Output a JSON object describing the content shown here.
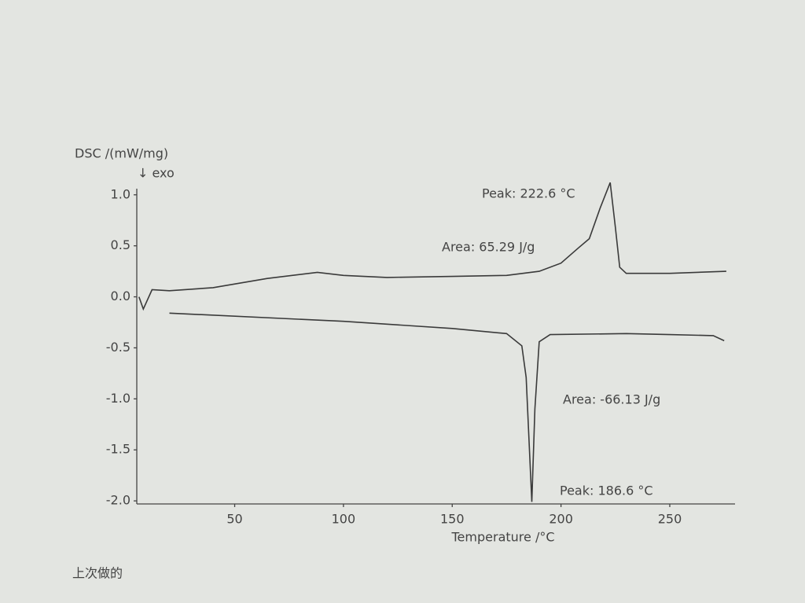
{
  "chart_data": {
    "type": "line",
    "ylabel": "DSC /(mW/mg)",
    "ylabel_note": "↓ exo",
    "xlabel": "Temperature /°C",
    "xlim": [
      5,
      280
    ],
    "ylim": [
      -2.03,
      1.06
    ],
    "xticks": [
      50,
      100,
      150,
      200,
      250
    ],
    "yticks": [
      {
        "value": 1,
        "label": "1.0"
      },
      0.5,
      {
        "value": 0,
        "label": "0.0"
      },
      -0.5,
      {
        "value": -1,
        "label": "-1.0"
      },
      -1.5,
      {
        "value": -2,
        "label": "-2.0"
      }
    ],
    "series": [
      {
        "color": "#3a3a3a",
        "x": [
          6,
          8,
          12,
          20,
          40,
          65,
          88,
          100,
          120,
          150,
          175,
          190,
          200,
          208,
          213,
          218,
          222.6,
          225,
          227,
          230,
          250,
          276
        ],
        "values": [
          0.0,
          -0.12,
          0.07,
          0.06,
          0.09,
          0.18,
          0.24,
          0.21,
          0.19,
          0.2,
          0.21,
          0.25,
          0.33,
          0.48,
          0.57,
          0.87,
          1.12,
          0.68,
          0.29,
          0.23,
          0.23,
          0.25
        ]
      },
      {
        "color": "#3a3a3a",
        "x": [
          20,
          100,
          150,
          175,
          182,
          184,
          186.6,
          188,
          190,
          195,
          230,
          250,
          270,
          275
        ],
        "values": [
          -0.16,
          -0.24,
          -0.31,
          -0.36,
          -0.48,
          -0.79,
          -2.01,
          -1.1,
          -0.44,
          -0.37,
          -0.36,
          -0.37,
          -0.38,
          -0.43
        ]
      }
    ],
    "annotations": [
      "Peak: 222.6 °C",
      "Area: 65.29 J/g",
      "Area: -66.13 J/g",
      "Peak: 186.6 °C"
    ],
    "footer": "上次做的"
  }
}
